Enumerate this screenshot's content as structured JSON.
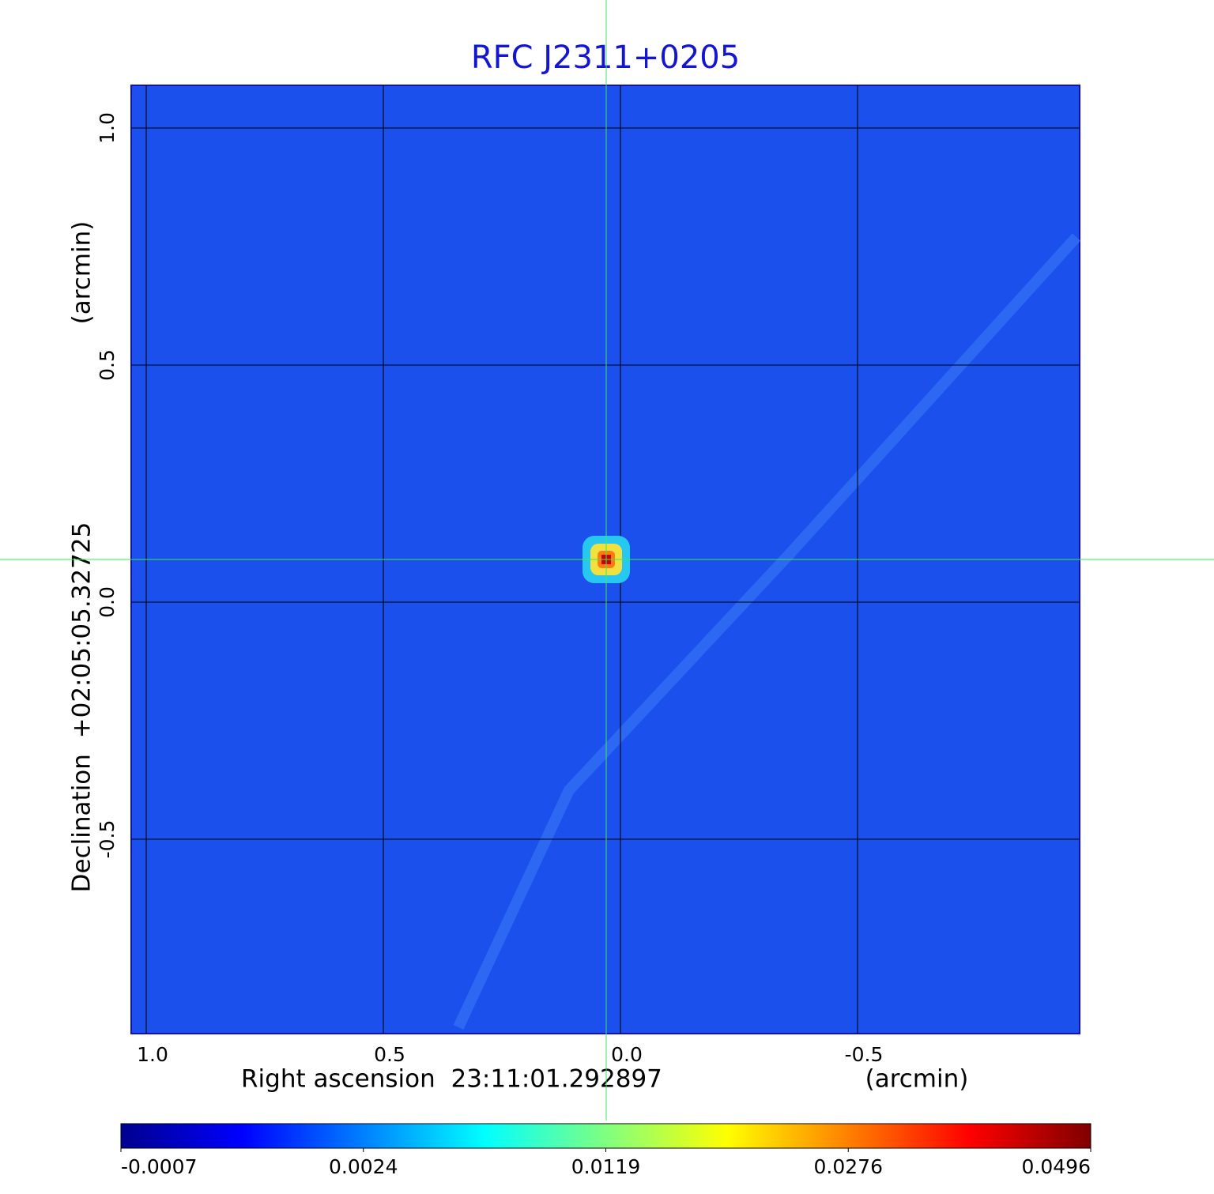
{
  "chart_data": {
    "type": "image",
    "title": "RFC J2311+0205",
    "x_label": "Right ascension  23:11:01.292897",
    "x_unit": "(arcmin)",
    "y_label": "Declination  +02:05:05.32725",
    "y_unit": "(arcmin)",
    "xlim": [
      1.0317,
      -0.9683
    ],
    "ylim": [
      -0.91,
      1.09
    ],
    "xticks": [
      {
        "value": 1,
        "label": "1.0"
      },
      0.5,
      {
        "value": 0,
        "label": "0.0"
      },
      -0.5
    ],
    "yticks": [
      {
        "value": 1,
        "label": "1.0"
      },
      0.5,
      {
        "value": 0,
        "label": "0.0"
      },
      -0.5
    ],
    "grid": true,
    "background_color": "#1b50ec",
    "source": {
      "x": 0.03,
      "y": 0.09,
      "peak": 0.0496
    },
    "crosshair_color": "#33ee55",
    "colormap": [
      "#00008f",
      "#0000ff",
      "#0080ff",
      "#00ffff",
      "#80ff80",
      "#ffff00",
      "#ff8000",
      "#ff0000",
      "#800000"
    ],
    "colorbar_ticks": [
      -0.0007,
      0.0024,
      0.0119,
      0.0276,
      0.0496
    ]
  }
}
